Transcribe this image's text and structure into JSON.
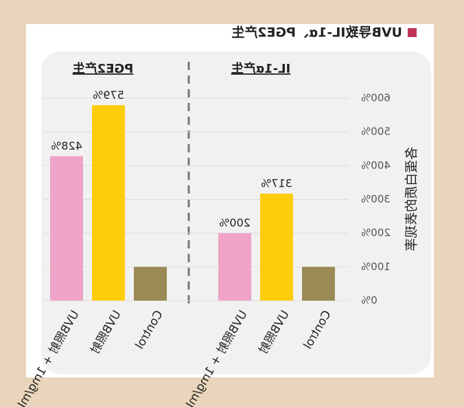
{
  "chart_data": {
    "type": "bar",
    "title": "UVB导致IL-1α、PGE2产生",
    "legend_color": "#c0325a",
    "y_label": "各蛋白质的表现率",
    "ylim": [
      0,
      600
    ],
    "yticks": [
      {
        "value": 0,
        "label": "0%"
      },
      {
        "value": 100,
        "label": "100%"
      },
      {
        "value": 200,
        "label": "200%"
      },
      {
        "value": 300,
        "label": "300%"
      },
      {
        "value": 400,
        "label": "400%"
      },
      {
        "value": 500,
        "label": "500%"
      },
      {
        "value": 600,
        "label": "600%"
      }
    ],
    "grid": true,
    "categories": [
      "Control",
      "UVB照射",
      "UVB照射 + 1mg/mL"
    ],
    "colors": [
      "#9a8b56",
      "#fdcd0b",
      "#eea3c7"
    ],
    "panels": [
      {
        "title": "IL-1α产生",
        "values": [
          100,
          317,
          200
        ],
        "value_labels": [
          null,
          "317%",
          "200%"
        ]
      },
      {
        "title": "PGE2产生",
        "values": [
          100,
          579,
          428
        ],
        "value_labels": [
          null,
          "579%",
          "428%"
        ]
      }
    ]
  }
}
